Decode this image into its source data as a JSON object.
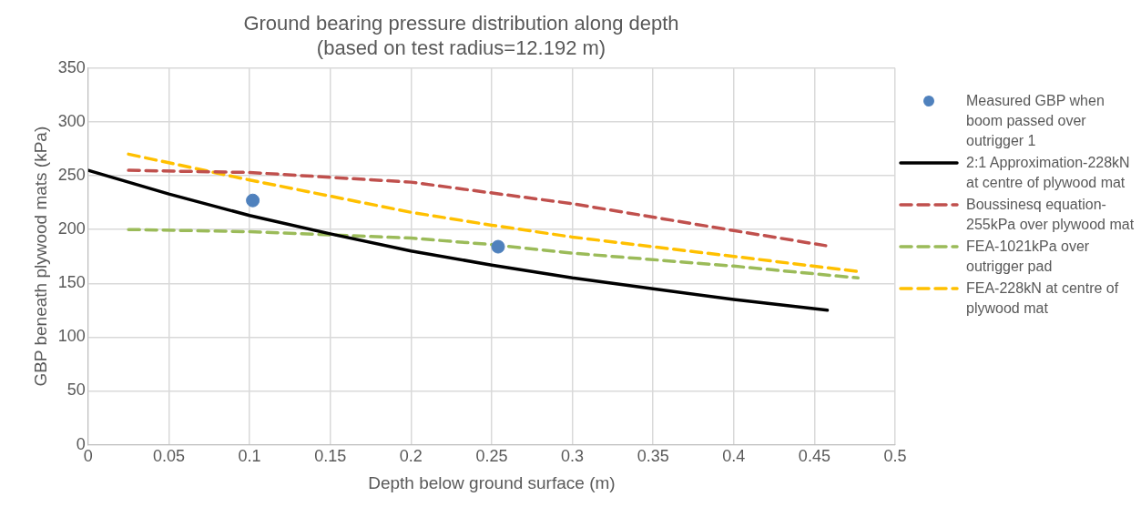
{
  "chart_data": {
    "type": "line",
    "title": "Ground bearing pressure distribution along depth\n(based on test radius=12.192 m)",
    "xlabel": "Depth below ground surface (m)",
    "ylabel": "GBP beneath plywood mats (kPa)",
    "xlim": [
      0,
      0.5
    ],
    "xticks": [
      0,
      0.05,
      0.1,
      0.15,
      0.2,
      0.25,
      0.3,
      0.35,
      0.4,
      0.45,
      0.5
    ],
    "ylim": [
      0,
      350
    ],
    "yticks": [
      0,
      50,
      100,
      150,
      200,
      250,
      300,
      350
    ],
    "grid": true,
    "legend": "right",
    "series": [
      {
        "name": "Measured GBP when boom passed over outrigger 1",
        "type": "scatter",
        "marker": "circle",
        "color": "#4f81bd",
        "x": [
          0.102,
          0.254
        ],
        "values": [
          227,
          184
        ]
      },
      {
        "name": "2:1 Approximation-228kN at centre of plywood mat",
        "type": "line",
        "marker": "none",
        "line_style": "solid",
        "color": "#000000",
        "x": [
          0,
          0.05,
          0.1,
          0.15,
          0.2,
          0.25,
          0.3,
          0.35,
          0.4,
          0.458
        ],
        "values": [
          255,
          233,
          213,
          196,
          180,
          167,
          155,
          145,
          135,
          125
        ]
      },
      {
        "name": "Boussinesq equation-255kPa over plywood mat",
        "type": "line",
        "marker": "none",
        "line_style": "dashed",
        "color": "#c0504d",
        "x": [
          0.025,
          0.1,
          0.2,
          0.3,
          0.4,
          0.457
        ],
        "values": [
          255,
          253,
          244,
          224,
          199,
          185
        ]
      },
      {
        "name": "FEA-1021kPa over outrigger pad",
        "type": "line",
        "marker": "none",
        "line_style": "dashed",
        "color": "#9bbb59",
        "x": [
          0.025,
          0.1,
          0.2,
          0.25,
          0.3,
          0.4,
          0.477
        ],
        "values": [
          200,
          198,
          192,
          186,
          178,
          166,
          155
        ]
      },
      {
        "name": "FEA-228kN at centre of plywood mat",
        "type": "line",
        "marker": "none",
        "line_style": "dashed",
        "color": "#ffc000",
        "x": [
          0.025,
          0.1,
          0.2,
          0.25,
          0.3,
          0.4,
          0.477
        ],
        "values": [
          270,
          246,
          216,
          204,
          193,
          175,
          161
        ]
      }
    ]
  }
}
